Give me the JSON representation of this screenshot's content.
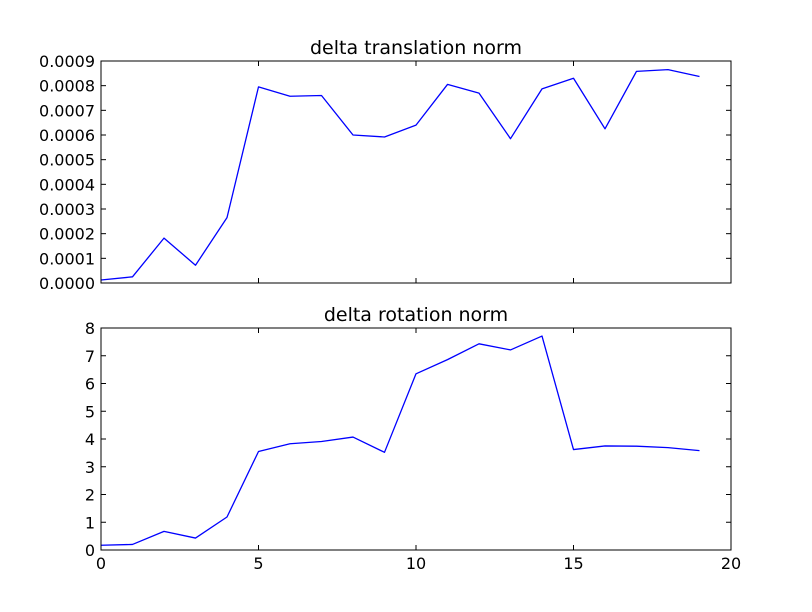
{
  "colors": {
    "line": "#0000ff",
    "axes": "#000000",
    "background": "#ffffff"
  },
  "chart_data": [
    {
      "type": "line",
      "title": "delta translation norm",
      "xlabel": "",
      "ylabel": "",
      "xlim": [
        0,
        20
      ],
      "ylim": [
        0,
        0.0009
      ],
      "grid": false,
      "x_ticks_labeled": false,
      "x_ticks": [
        0,
        5,
        10,
        15,
        20
      ],
      "y_ticks": [
        0,
        0.0001,
        0.0002,
        0.0003,
        0.0004,
        0.0005,
        0.0006,
        0.0007,
        0.0008,
        0.0009
      ],
      "y_tick_labels": [
        "0.0000",
        "0.0001",
        "0.0002",
        "0.0003",
        "0.0004",
        "0.0005",
        "0.0006",
        "0.0007",
        "0.0008",
        "0.0009"
      ],
      "series": [
        {
          "x": [
            0,
            1,
            2,
            3,
            4,
            5,
            6,
            7,
            8,
            9,
            10,
            11,
            12,
            13,
            14,
            15,
            16,
            17,
            18,
            19
          ],
          "values": [
            1.2e-05,
            2.5e-05,
            0.000182,
            7.2e-05,
            0.000265,
            0.000795,
            0.000757,
            0.00076,
            0.0006,
            0.000592,
            0.00064,
            0.000805,
            0.00077,
            0.000585,
            0.000787,
            0.00083,
            0.000625,
            0.000858,
            0.000865,
            0.000837
          ]
        }
      ]
    },
    {
      "type": "line",
      "title": "delta rotation norm",
      "xlabel": "",
      "ylabel": "",
      "xlim": [
        0,
        20
      ],
      "ylim": [
        0,
        8
      ],
      "grid": false,
      "x_ticks_labeled": true,
      "x_ticks": [
        0,
        5,
        10,
        15,
        20
      ],
      "x_tick_labels": [
        "0",
        "5",
        "10",
        "15",
        "20"
      ],
      "y_ticks": [
        0,
        1,
        2,
        3,
        4,
        5,
        6,
        7,
        8
      ],
      "y_tick_labels": [
        "0",
        "1",
        "2",
        "3",
        "4",
        "5",
        "6",
        "7",
        "8"
      ],
      "series": [
        {
          "x": [
            0,
            1,
            2,
            3,
            4,
            5,
            6,
            7,
            8,
            9,
            10,
            11,
            12,
            13,
            14,
            15,
            16,
            17,
            18,
            19
          ],
          "values": [
            0.17,
            0.2,
            0.67,
            0.43,
            1.19,
            3.55,
            3.83,
            3.91,
            4.07,
            3.52,
            6.35,
            6.86,
            7.43,
            7.21,
            7.71,
            3.62,
            3.75,
            3.74,
            3.69,
            3.58
          ]
        }
      ]
    }
  ]
}
